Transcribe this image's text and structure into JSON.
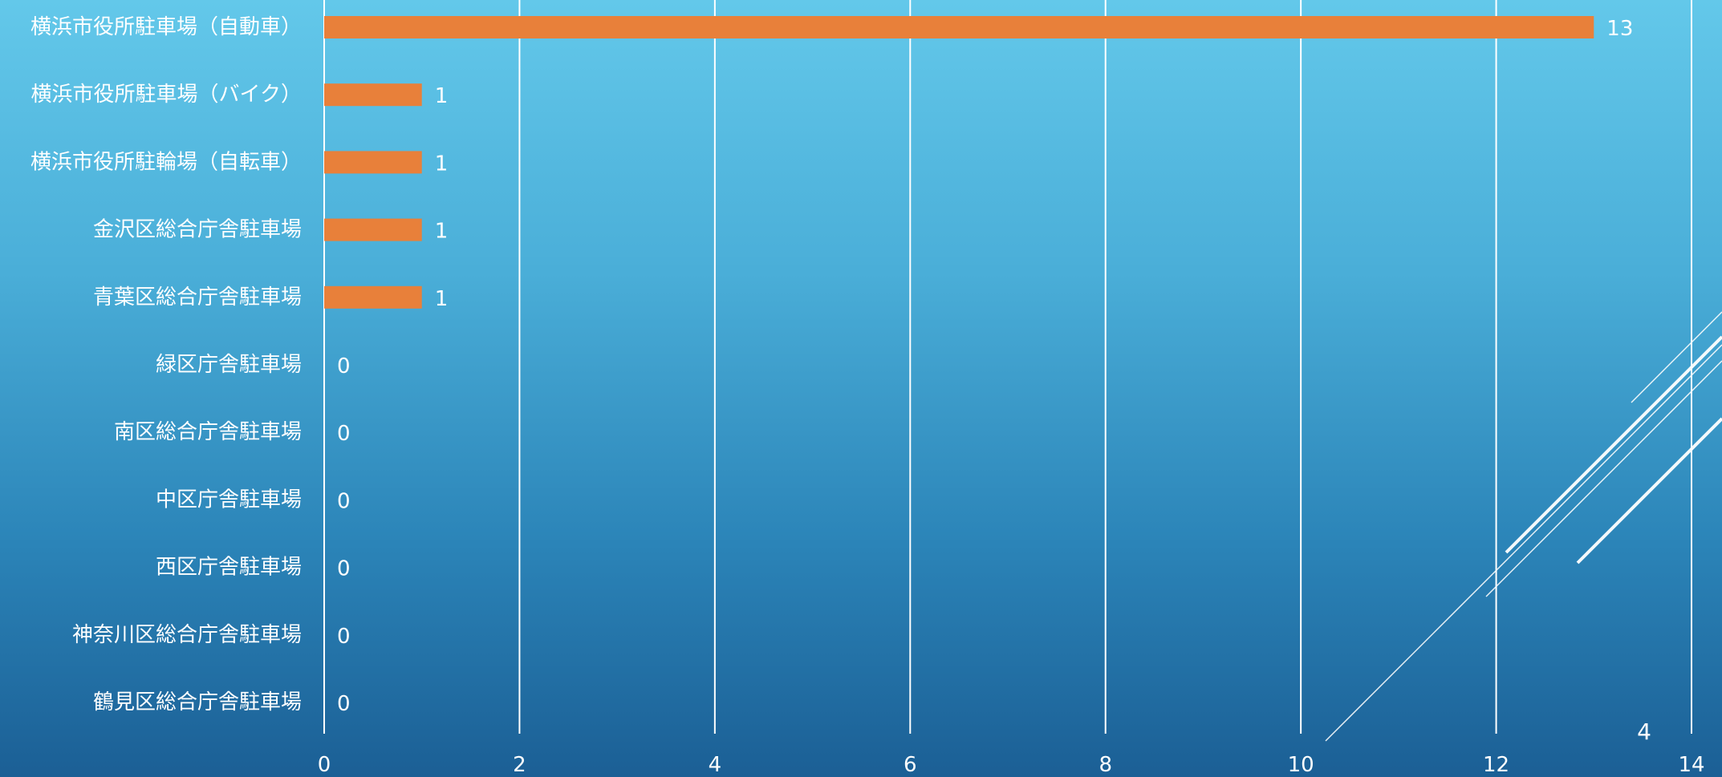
{
  "chart_data": {
    "type": "bar",
    "orientation": "horizontal",
    "categories": [
      "横浜市役所駐車場（自動車）",
      "横浜市役所駐車場（バイク）",
      "横浜市役所駐輪場（自転車）",
      "金沢区総合庁舎駐車場",
      "青葉区総合庁舎駐車場",
      "緑区庁舎駐車場",
      "南区総合庁舎駐車場",
      "中区庁舎駐車場",
      "西区庁舎駐車場",
      "神奈川区総合庁舎駐車場",
      "鶴見区総合庁舎駐車場"
    ],
    "values": [
      13,
      1,
      1,
      1,
      1,
      0,
      0,
      0,
      0,
      0,
      0
    ],
    "xlim": [
      0,
      14
    ],
    "xticks": [
      0,
      2,
      4,
      6,
      8,
      10,
      12,
      14
    ],
    "grid": true,
    "bar_color": "#e8803a",
    "grid_color": "#ffffff",
    "data_labels": true
  },
  "slide": {
    "page_number": "4"
  },
  "colors": {
    "background_top": "#63c8ea",
    "background_bottom": "#1b5f95",
    "text": "#ffffff"
  }
}
